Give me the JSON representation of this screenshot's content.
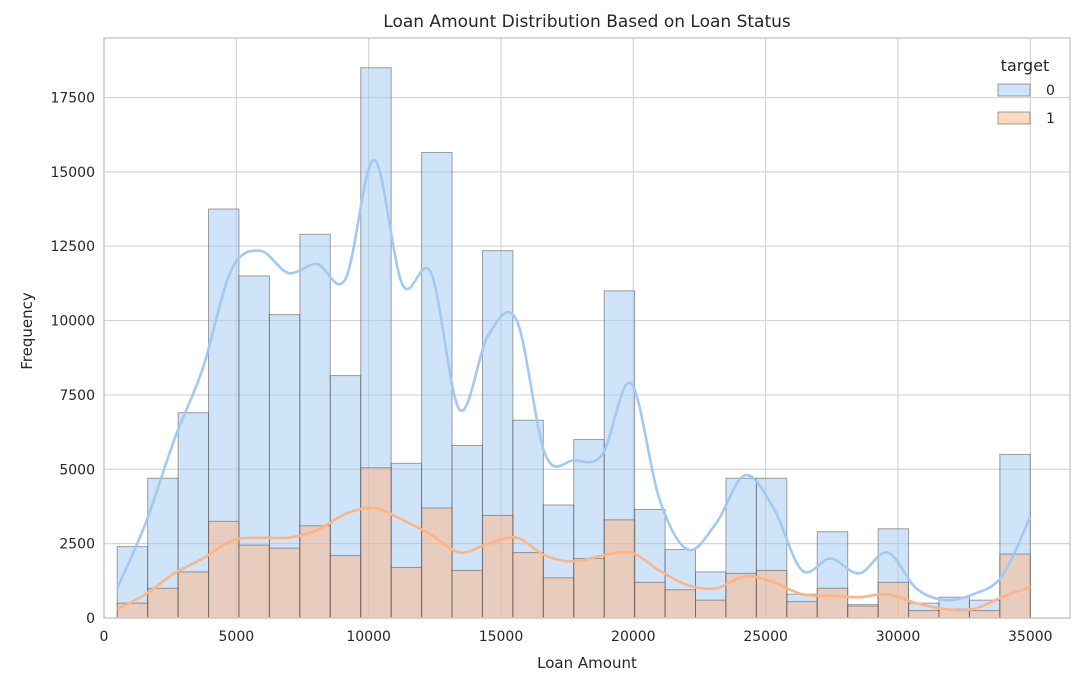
{
  "chart_data": {
    "type": "histogram",
    "title": "Loan Amount Distribution Based on Loan Status",
    "xlabel": "Loan Amount",
    "ylabel": "Frequency",
    "xlim": [
      0,
      36500
    ],
    "ylim": [
      0,
      19500
    ],
    "xticks": [
      0,
      5000,
      10000,
      15000,
      20000,
      25000,
      30000,
      35000
    ],
    "yticks": [
      0,
      2500,
      5000,
      7500,
      10000,
      12500,
      15000,
      17500
    ],
    "grid": true,
    "legend": {
      "title": "target",
      "position": "top-right"
    },
    "bins": {
      "start": 500,
      "width": 1150,
      "count": 30
    },
    "series": [
      {
        "name": "0",
        "color": "#a1c9f4",
        "values": [
          2400,
          4700,
          6900,
          13750,
          11500,
          10200,
          12900,
          8150,
          18500,
          5200,
          15650,
          5800,
          12350,
          6650,
          3800,
          6000,
          11000,
          3650,
          2300,
          1550,
          4700,
          4700,
          800,
          2900,
          450,
          3000,
          500,
          700,
          600,
          5500
        ],
        "kde": [
          1000,
          3200,
          6000,
          8400,
          11700,
          12350,
          11600,
          11900,
          11400,
          15400,
          11200,
          11600,
          7000,
          9500,
          10000,
          5500,
          5300,
          5500,
          7900,
          4000,
          2300,
          3200,
          4800,
          3700,
          1600,
          2000,
          1500,
          2200,
          1000,
          600,
          800,
          1400,
          3400
        ]
      },
      {
        "name": "1",
        "color": "#ffb482",
        "values": [
          500,
          1000,
          1550,
          3250,
          2450,
          2350,
          3100,
          2100,
          5050,
          1700,
          3700,
          1600,
          3450,
          2200,
          1350,
          2000,
          3300,
          1200,
          950,
          600,
          1500,
          1600,
          550,
          1000,
          400,
          1200,
          250,
          300,
          250,
          2150
        ],
        "kde": [
          300,
          800,
          1500,
          2000,
          2600,
          2700,
          2700,
          2950,
          3500,
          3700,
          3300,
          2800,
          2200,
          2500,
          2700,
          2100,
          1900,
          2100,
          2200,
          1600,
          1100,
          1000,
          1400,
          1200,
          800,
          750,
          700,
          800,
          500,
          300,
          300,
          700,
          1050
        ]
      }
    ]
  }
}
